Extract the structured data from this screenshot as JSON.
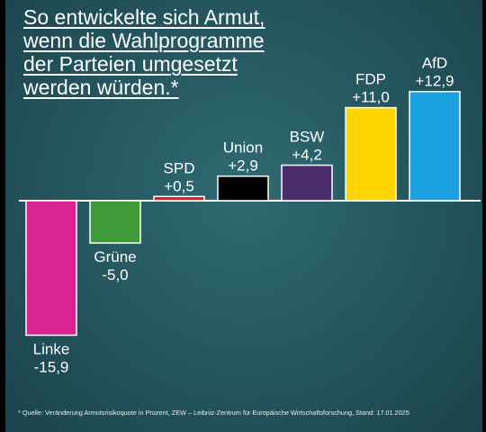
{
  "title_lines": [
    "So entwickelte sich Armut,",
    "wenn die Wahlprogramme",
    "der Parteien umgesetzt",
    "werden würden.*"
  ],
  "source": "* Quelle: Veränderung Armutsrisikoquote in Prozent, ZEW – Leibniz-Zentrum für Europäische Wirtschaftsforschung, Stand: 17.01.2025",
  "chart_data": {
    "type": "bar",
    "title": "So entwickelte sich Armut, wenn die Wahlprogramme der Parteien umgesetzt werden würden.*",
    "categories": [
      "Linke",
      "Grüne",
      "SPD",
      "Union",
      "BSW",
      "FDP",
      "AfD"
    ],
    "values": [
      -15.9,
      -5.0,
      0.5,
      2.9,
      4.2,
      11.0,
      12.9
    ],
    "value_labels": [
      "-15,9",
      "-5,0",
      "+0,5",
      "+2,9",
      "+4,2",
      "+11,0",
      "+12,9"
    ],
    "colors": [
      "#d9248f",
      "#3f9a3a",
      "#dd1e1e",
      "#000000",
      "#4b2d6b",
      "#ffd500",
      "#1aa2e0"
    ],
    "baseline": 0,
    "grid": false,
    "legend": "none"
  }
}
